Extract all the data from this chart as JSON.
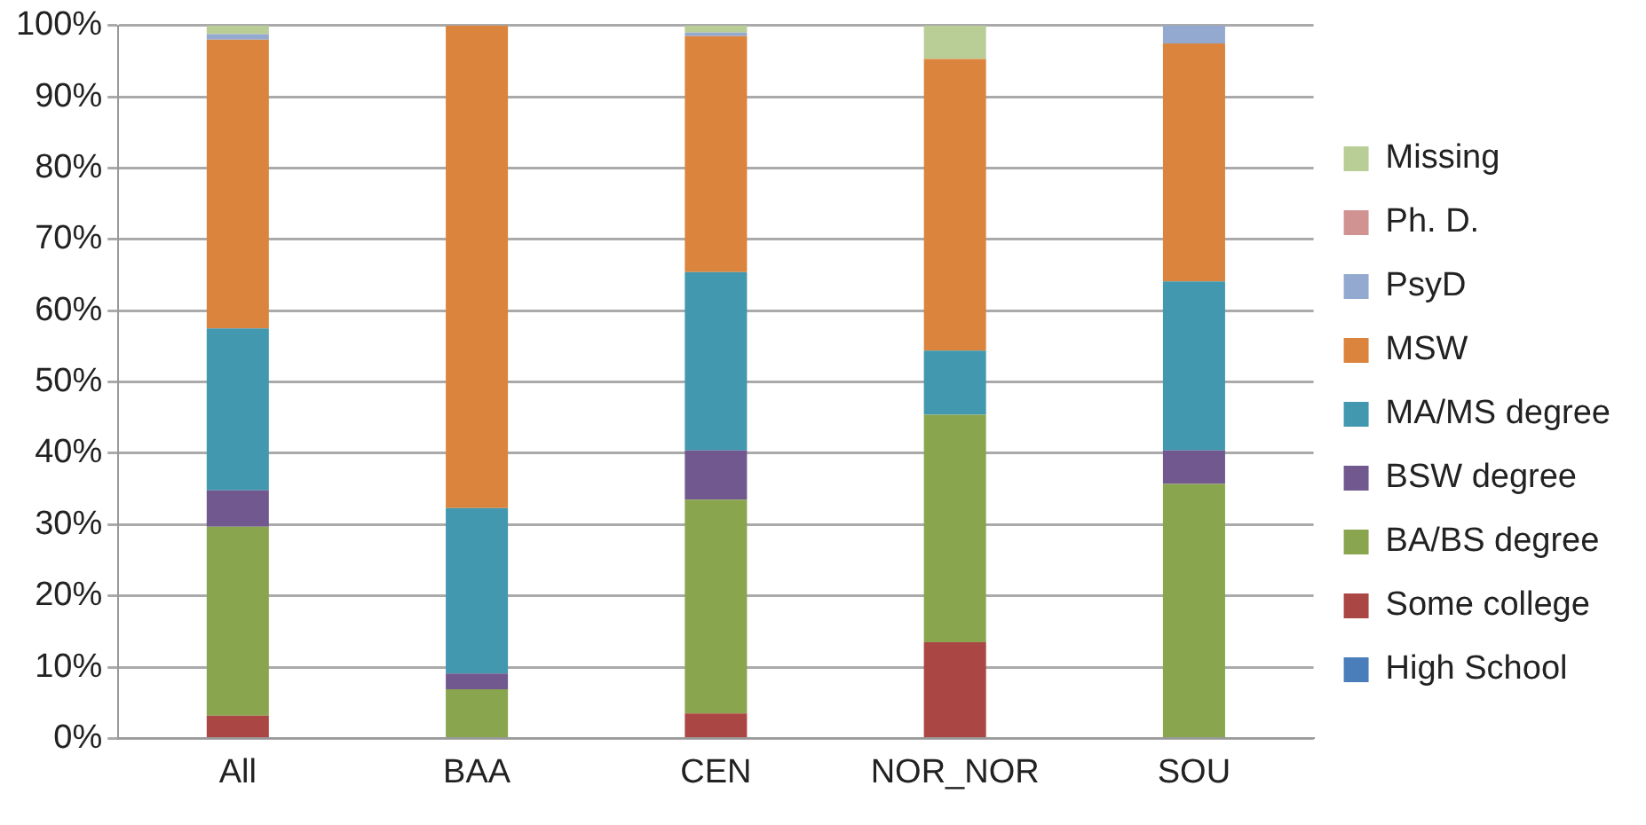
{
  "chart_data": {
    "type": "bar",
    "stacked": true,
    "categories": [
      "All",
      "BAA",
      "CEN",
      "NOR_NOR",
      "SOU"
    ],
    "series": [
      {
        "name": "High School",
        "color": "#4a7ebb",
        "values": [
          0,
          0,
          0,
          0,
          0
        ]
      },
      {
        "name": "Some college",
        "color": "#aa4643",
        "values": [
          3.2,
          0,
          3.5,
          13.5,
          0
        ]
      },
      {
        "name": "BA/BS degree",
        "color": "#89a54e",
        "values": [
          26.5,
          6.9,
          30,
          31.9,
          35.7
        ]
      },
      {
        "name": "BSW degree",
        "color": "#71588f",
        "values": [
          5.1,
          2.2,
          6.9,
          0,
          4.7
        ]
      },
      {
        "name": "MA/MS degree",
        "color": "#4198af",
        "values": [
          22.7,
          23.2,
          25,
          9,
          23.7
        ]
      },
      {
        "name": "MSW",
        "color": "#db843d",
        "values": [
          40.5,
          67.7,
          33.1,
          40.9,
          33.4
        ]
      },
      {
        "name": "PsyD",
        "color": "#93a9cf",
        "values": [
          0.8,
          0,
          0.5,
          0,
          2.5
        ]
      },
      {
        "name": "Ph. D.",
        "color": "#d19392",
        "values": [
          0,
          0,
          0,
          0,
          0
        ]
      },
      {
        "name": "Missing",
        "color": "#b9cd96",
        "values": [
          1.2,
          0,
          1,
          4.7,
          0
        ]
      }
    ],
    "ylim": [
      0,
      100
    ],
    "yticks": [
      {
        "value": 0,
        "label": "0%"
      },
      {
        "value": 10,
        "label": "10%"
      },
      {
        "value": 20,
        "label": "20%"
      },
      {
        "value": 30,
        "label": "30%"
      },
      {
        "value": 40,
        "label": "40%"
      },
      {
        "value": 50,
        "label": "50%"
      },
      {
        "value": 60,
        "label": "60%"
      },
      {
        "value": 70,
        "label": "70%"
      },
      {
        "value": 80,
        "label": "80%"
      },
      {
        "value": 90,
        "label": "90%"
      },
      {
        "value": 100,
        "label": "100%"
      }
    ],
    "grid": "y",
    "legend": "right"
  }
}
